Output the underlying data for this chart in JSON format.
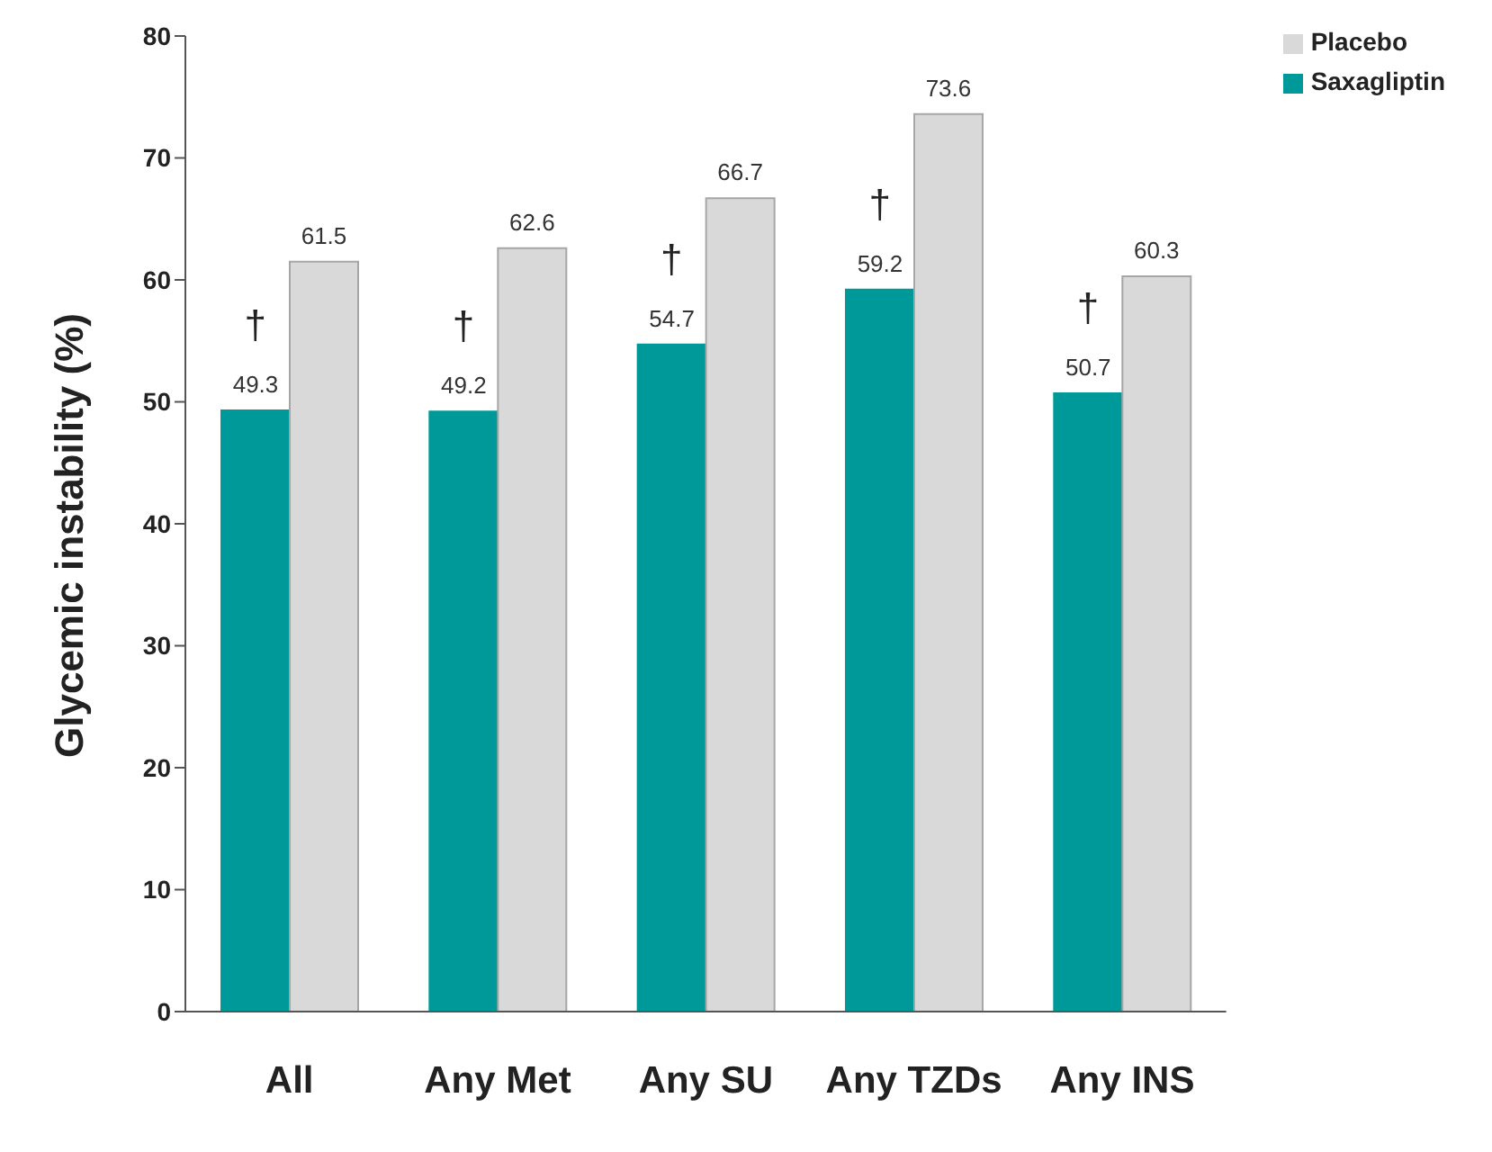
{
  "chart_data": {
    "type": "bar",
    "ylabel": "Glycemic instability (%)",
    "categories": [
      "All",
      "Any Met",
      "Any SU",
      "Any TZDs",
      "Any INS"
    ],
    "series": [
      {
        "name": "Saxagliptin",
        "color": "#009999",
        "values": [
          49.3,
          49.2,
          54.7,
          59.2,
          50.7
        ]
      },
      {
        "name": "Placebo",
        "color": "#d9d9d9",
        "values": [
          61.5,
          62.6,
          66.7,
          73.6,
          60.3
        ]
      }
    ],
    "ylim": [
      0,
      80
    ],
    "yticks": [
      0,
      10,
      20,
      30,
      40,
      50,
      60,
      70,
      80
    ],
    "grid": false,
    "legend": "top right",
    "data_labels": true,
    "annotations": [
      {
        "text": "†",
        "x": "All",
        "y": 49.3
      },
      {
        "text": "†",
        "x": "Any Met",
        "y": 49.2
      },
      {
        "text": "†",
        "x": "Any SU",
        "y": 54.7
      },
      {
        "text": "†",
        "x": "Any TZDs",
        "y": 59.2
      },
      {
        "text": "†",
        "x": "Any INS",
        "y": 50.7
      }
    ]
  }
}
